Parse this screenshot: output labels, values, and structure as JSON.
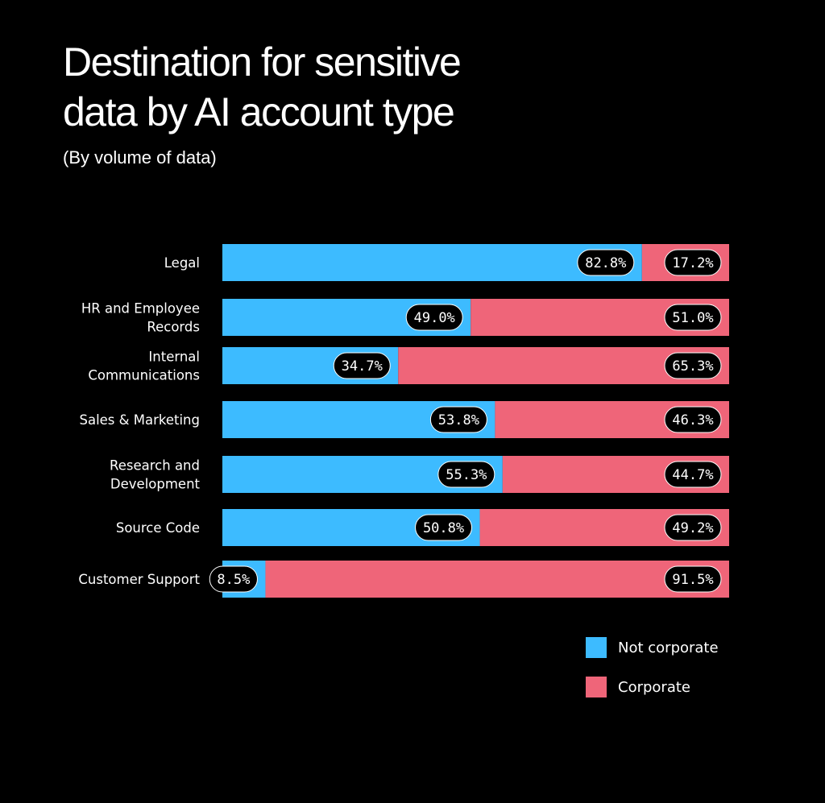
{
  "title_line1": "Destination for sensitive",
  "title_line2": "data by AI account type",
  "subtitle": "(By volume of data)",
  "colors": {
    "background": "#000000",
    "not_corporate": "#3dbbff",
    "corporate": "#ef6579",
    "label_bg": "#000000",
    "text": "#ffffff"
  },
  "legend": {
    "not_corporate": "Not corporate",
    "corporate": "Corporate"
  },
  "chart_data": {
    "type": "bar",
    "orientation": "horizontal",
    "stacked": true,
    "normalized": true,
    "title": "Destination for sensitive data by AI account type",
    "subtitle": "(By volume of data)",
    "xlabel": "",
    "ylabel": "",
    "xlim": [
      0,
      100
    ],
    "grid": false,
    "legend_position": "bottom-right",
    "categories": [
      [
        "Legal"
      ],
      [
        "HR and Employee",
        "Records"
      ],
      [
        "Internal",
        "Communications"
      ],
      [
        "Sales & Marketing"
      ],
      [
        "Research and",
        "Development"
      ],
      [
        "Source Code"
      ],
      [
        "Customer Support"
      ]
    ],
    "series": [
      {
        "name": "Not corporate",
        "values": [
          82.8,
          49.0,
          34.7,
          53.8,
          55.3,
          50.8,
          8.5
        ],
        "labels": [
          "82.8%",
          "49.0%",
          "34.7%",
          "53.8%",
          "55.3%",
          "50.8%",
          "8.5%"
        ]
      },
      {
        "name": "Corporate",
        "values": [
          17.2,
          51.0,
          65.3,
          46.3,
          44.7,
          49.2,
          91.5
        ],
        "labels": [
          "17.2%",
          "51.0%",
          "65.3%",
          "46.3%",
          "44.7%",
          "49.2%",
          "91.5%"
        ]
      }
    ]
  }
}
